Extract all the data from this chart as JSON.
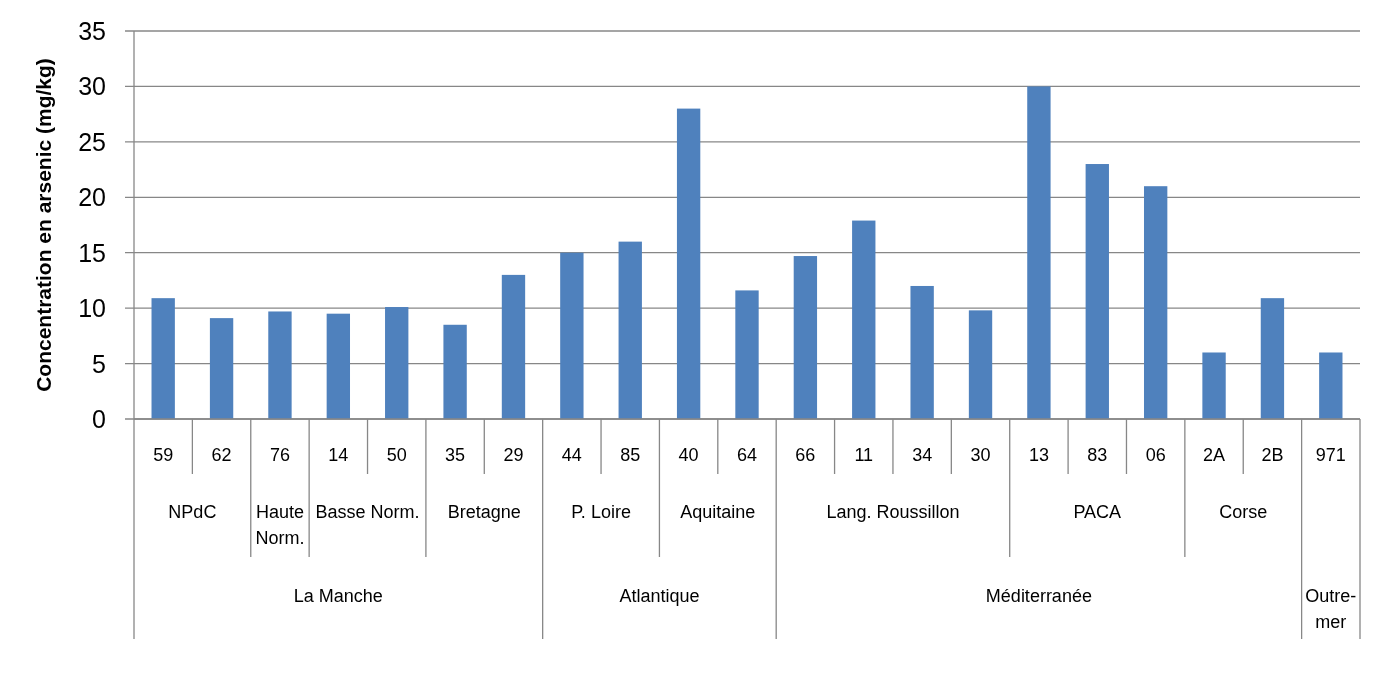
{
  "chart_data": {
    "type": "bar",
    "ylabel": "Concentration en arsenic (mg/kg)",
    "categories": [
      "59",
      "62",
      "76",
      "14",
      "50",
      "35",
      "29",
      "44",
      "85",
      "40",
      "64",
      "66",
      "11",
      "34",
      "30",
      "13",
      "83",
      "06",
      "2A",
      "2B",
      "971"
    ],
    "values": [
      10.9,
      9.1,
      9.7,
      9.5,
      10.1,
      8.5,
      13,
      15,
      16,
      28,
      11.6,
      14.7,
      17.9,
      12,
      9.8,
      30,
      23,
      21,
      6,
      10.9,
      6
    ],
    "color": "#4f81bd",
    "ylim": [
      0,
      35
    ],
    "yticks": [
      0,
      5,
      10,
      15,
      20,
      25,
      30,
      35
    ],
    "grid": "y",
    "annotations": [
      "NPdC",
      "Haute Norm.",
      "Basse Norm.",
      "Bretagne",
      "P. Loire",
      "Aquitaine",
      "Lang. Roussillon",
      "PACA",
      "Corse",
      "La Manche",
      "Atlantique",
      "Méditerranée",
      "Outre-mer"
    ]
  }
}
